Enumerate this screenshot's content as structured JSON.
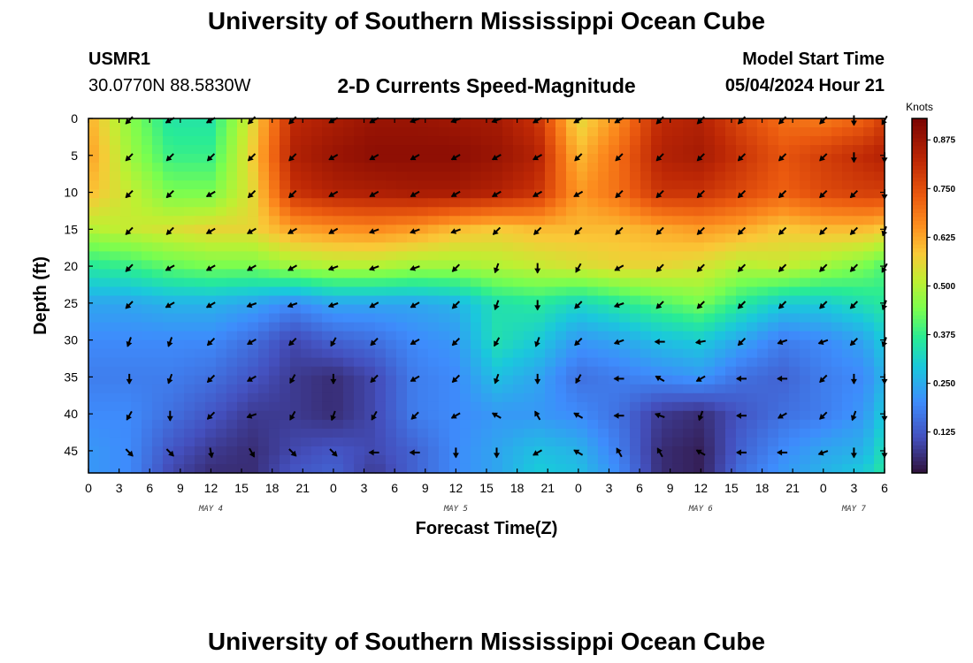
{
  "header": {
    "title": "University of Southern Mississippi Ocean Cube",
    "station_id": "USMR1",
    "station_coords": "30.0770N  88.5830W",
    "plot_title": "2-D Currents Speed-Magnitude",
    "model_label": "Model Start Time",
    "model_value": "05/04/2024 Hour 21"
  },
  "footer": {
    "title": "University of Southern Mississippi Ocean Cube"
  },
  "chart_data": {
    "type": "heatmap",
    "title": "2-D Currents Speed-Magnitude",
    "xlabel": "Forecast Time(Z)",
    "ylabel": "Depth (ft)",
    "colorbar_label": "Knots",
    "colorbar_ticks": [
      "0.125",
      "0.250",
      "0.375",
      "0.500",
      "0.625",
      "0.750",
      "0.875"
    ],
    "colorbar_values": [
      0.125,
      0.25,
      0.375,
      0.5,
      0.625,
      0.75,
      0.875
    ],
    "colorbar_range": [
      0.02,
      0.93
    ],
    "x_ticks": [
      "0",
      "3",
      "6",
      "9",
      "12",
      "15",
      "18",
      "21",
      "0",
      "3",
      "6",
      "9",
      "12",
      "15",
      "18",
      "21",
      "0",
      "3",
      "6",
      "9",
      "12",
      "15",
      "18",
      "21",
      "0",
      "3",
      "6"
    ],
    "x_range_hours": [
      0,
      78
    ],
    "date_labels": [
      {
        "text": "MAY 4",
        "hour": 12
      },
      {
        "text": "MAY 5",
        "hour": 36
      },
      {
        "text": "MAY 6",
        "hour": 60
      },
      {
        "text": "MAY 7",
        "hour": 75
      }
    ],
    "y_ticks": [
      "0",
      "5",
      "10",
      "15",
      "20",
      "25",
      "30",
      "35",
      "40",
      "45"
    ],
    "y_range": [
      0,
      48
    ],
    "grid": false,
    "speed": {
      "hours": [
        0,
        4,
        8,
        12,
        16,
        20,
        24,
        28,
        32,
        36,
        40,
        44,
        48,
        52,
        56,
        60,
        64,
        68,
        72,
        76,
        78
      ],
      "depths": [
        0,
        5,
        10,
        15,
        20,
        25,
        30,
        35,
        40,
        45,
        48
      ],
      "values": [
        [
          0.62,
          0.46,
          0.35,
          0.35,
          0.55,
          0.82,
          0.85,
          0.88,
          0.88,
          0.87,
          0.86,
          0.8,
          0.55,
          0.66,
          0.82,
          0.84,
          0.76,
          0.7,
          0.68,
          0.72,
          0.78
        ],
        [
          0.64,
          0.48,
          0.38,
          0.38,
          0.57,
          0.84,
          0.88,
          0.9,
          0.9,
          0.9,
          0.88,
          0.84,
          0.6,
          0.7,
          0.84,
          0.86,
          0.8,
          0.74,
          0.78,
          0.82,
          0.84
        ],
        [
          0.6,
          0.52,
          0.44,
          0.44,
          0.55,
          0.8,
          0.84,
          0.85,
          0.86,
          0.86,
          0.84,
          0.8,
          0.64,
          0.7,
          0.8,
          0.8,
          0.76,
          0.72,
          0.76,
          0.78,
          0.78
        ],
        [
          0.5,
          0.52,
          0.54,
          0.56,
          0.56,
          0.63,
          0.65,
          0.66,
          0.64,
          0.6,
          0.58,
          0.6,
          0.6,
          0.6,
          0.62,
          0.64,
          0.62,
          0.58,
          0.6,
          0.6,
          0.58
        ],
        [
          0.36,
          0.38,
          0.42,
          0.44,
          0.44,
          0.48,
          0.5,
          0.5,
          0.48,
          0.48,
          0.5,
          0.52,
          0.54,
          0.56,
          0.56,
          0.54,
          0.5,
          0.52,
          0.48,
          0.44,
          0.4
        ],
        [
          0.24,
          0.24,
          0.26,
          0.26,
          0.24,
          0.2,
          0.24,
          0.24,
          0.24,
          0.26,
          0.34,
          0.36,
          0.32,
          0.36,
          0.4,
          0.44,
          0.36,
          0.3,
          0.3,
          0.34,
          0.36
        ],
        [
          0.2,
          0.2,
          0.2,
          0.2,
          0.16,
          0.1,
          0.14,
          0.16,
          0.2,
          0.22,
          0.34,
          0.3,
          0.22,
          0.24,
          0.28,
          0.3,
          0.24,
          0.18,
          0.2,
          0.24,
          0.3
        ],
        [
          0.18,
          0.18,
          0.18,
          0.16,
          0.12,
          0.08,
          0.06,
          0.1,
          0.18,
          0.2,
          0.28,
          0.24,
          0.16,
          0.18,
          0.2,
          0.22,
          0.16,
          0.14,
          0.18,
          0.2,
          0.26
        ],
        [
          0.2,
          0.2,
          0.16,
          0.12,
          0.08,
          0.08,
          0.06,
          0.1,
          0.18,
          0.2,
          0.22,
          0.22,
          0.2,
          0.16,
          0.08,
          0.06,
          0.12,
          0.16,
          0.18,
          0.22,
          0.3
        ],
        [
          0.22,
          0.2,
          0.12,
          0.08,
          0.06,
          0.1,
          0.12,
          0.1,
          0.14,
          0.2,
          0.24,
          0.28,
          0.26,
          0.18,
          0.06,
          0.04,
          0.14,
          0.2,
          0.24,
          0.26,
          0.34
        ],
        [
          0.22,
          0.2,
          0.1,
          0.06,
          0.06,
          0.12,
          0.14,
          0.08,
          0.14,
          0.2,
          0.24,
          0.3,
          0.28,
          0.2,
          0.06,
          0.04,
          0.16,
          0.22,
          0.26,
          0.3,
          0.36
        ]
      ]
    },
    "vectors": {
      "hours": [
        4,
        8,
        12,
        16,
        20,
        24,
        28,
        32,
        36,
        40,
        44,
        48,
        52,
        56,
        60,
        64,
        68,
        72,
        75,
        78
      ],
      "depths": [
        0,
        5,
        10,
        15,
        20,
        25,
        30,
        35,
        40,
        45
      ],
      "directions_deg": [
        [
          225,
          240,
          240,
          225,
          225,
          240,
          240,
          250,
          250,
          250,
          240,
          240,
          240,
          225,
          225,
          225,
          225,
          225,
          180,
          210
        ],
        [
          225,
          225,
          225,
          225,
          225,
          240,
          240,
          240,
          240,
          240,
          240,
          225,
          225,
          225,
          225,
          225,
          225,
          225,
          180,
          180
        ],
        [
          225,
          225,
          240,
          225,
          225,
          240,
          240,
          240,
          240,
          240,
          240,
          240,
          225,
          225,
          225,
          225,
          225,
          225,
          225,
          180
        ],
        [
          225,
          225,
          240,
          240,
          240,
          240,
          250,
          250,
          250,
          225,
          225,
          225,
          225,
          225,
          225,
          225,
          225,
          225,
          225,
          200
        ],
        [
          225,
          240,
          240,
          240,
          240,
          250,
          250,
          250,
          225,
          200,
          180,
          210,
          240,
          225,
          225,
          225,
          225,
          225,
          225,
          210
        ],
        [
          225,
          240,
          240,
          250,
          250,
          250,
          240,
          240,
          225,
          200,
          180,
          225,
          250,
          225,
          225,
          225,
          225,
          225,
          225,
          200
        ],
        [
          200,
          200,
          225,
          240,
          225,
          210,
          225,
          240,
          225,
          210,
          200,
          225,
          250,
          270,
          260,
          225,
          250,
          250,
          225,
          200
        ],
        [
          180,
          200,
          225,
          240,
          210,
          180,
          225,
          240,
          225,
          200,
          180,
          210,
          270,
          300,
          240,
          270,
          270,
          225,
          180,
          180
        ],
        [
          210,
          180,
          225,
          250,
          210,
          200,
          210,
          225,
          240,
          300,
          330,
          300,
          270,
          290,
          200,
          270,
          240,
          225,
          200,
          180
        ],
        [
          135,
          135,
          170,
          150,
          135,
          135,
          270,
          270,
          180,
          180,
          240,
          300,
          330,
          330,
          300,
          270,
          270,
          250,
          180,
          180
        ]
      ]
    }
  }
}
